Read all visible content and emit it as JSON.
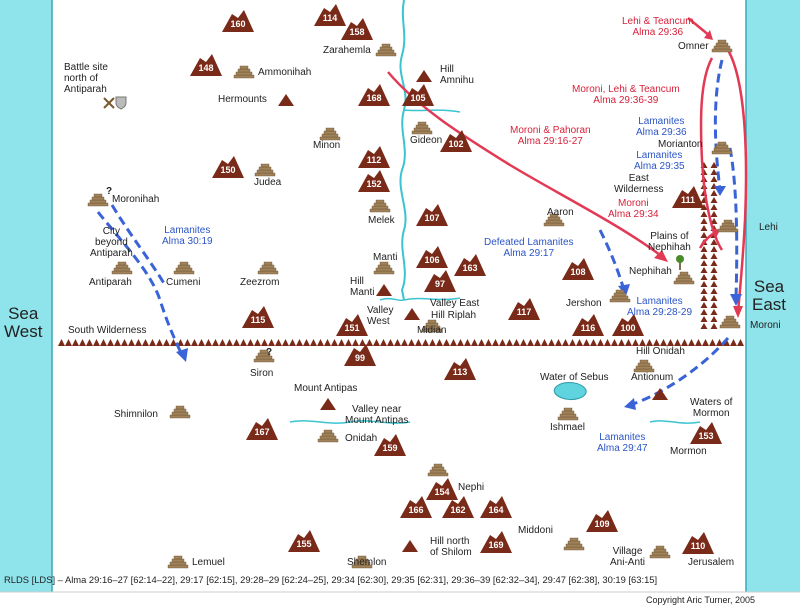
{
  "seas": {
    "west": "Sea\nWest",
    "east": "Sea\nEast"
  },
  "labels": {
    "zarahemla": "Zarahemla",
    "hill_amnihu": "Hill\nAmnihu",
    "ammonihah": "Ammonihah",
    "battle_site": "Battle site\nnorth of\nAntiparah",
    "hermounts": "Hermounts",
    "minon": "Minon",
    "gideon": "Gideon",
    "judea": "Judea",
    "melek": "Melek",
    "moronihah": "Moronihah",
    "city_beyond": "City\nbeyond\nAntiparah",
    "antiparah": "Antiparah",
    "cumeni": "Cumeni",
    "zeezrom": "Zeezrom",
    "manti": "Manti",
    "hill_manti": "Hill\nManti",
    "valley_west": "Valley\nWest",
    "valley_east": "Valley East",
    "hill_riplah": "Hill Riplah",
    "midian": "Midian",
    "south_wilderness": "South Wilderness",
    "siron": "Siron",
    "mount_antipas": "Mount Antipas",
    "valley_near": "Valley near\nMount Antipas",
    "onidah": "Onidah",
    "shimnilon": "Shimnilon",
    "nephi": "Nephi",
    "hill_north_shilom": "Hill north\nof Shilom",
    "middoni": "Middoni",
    "lemuel": "Lemuel",
    "shemlon": "Shemlon",
    "omner": "Omner",
    "morianton": "Morianton",
    "east_wilderness": "East\nWilderness",
    "aaron": "Aaron",
    "plains": "Plains of\nNephihah",
    "nephihah": "Nephihah",
    "jershon": "Jershon",
    "lehi": "Lehi",
    "moroni": "Moroni",
    "hill_onidah": "Hill Onidah",
    "antionum": "Antionum",
    "water_sebus": "Water of Sebus",
    "ishmael": "Ishmael",
    "waters_mormon": "Waters of\nMormon",
    "mormon": "Mormon",
    "village_ani_anti": "Village\nAni-Anti",
    "jerusalem": "Jerusalem",
    "q1": "?",
    "q2": "?"
  },
  "routes": {
    "lehi_teancum": "Lehi & Teancum\nAlma 29:36",
    "moroni_lehi_teancum": "Moroni, Lehi & Teancum\nAlma 29:36-39",
    "moroni_pahoran": "Moroni & Pahoran\nAlma 29:16-27",
    "moroni_3434": "Moroni\nAlma 29:34",
    "lam_3036": "Lamanites\nAlma 29:36",
    "lam_2935": "Lamanites\nAlma 29:35",
    "lam_3019": "Lamanites\nAlma 30:19",
    "defeated": "Defeated Lamanites\nAlma 29:17",
    "lam_2829": "Lamanites\nAlma 29:28-29",
    "lam_2947": "Lamanites\nAlma 29:47"
  },
  "hill_numbers": [
    "160",
    "114",
    "158",
    "148",
    "168",
    "105",
    "102",
    "112",
    "150",
    "152",
    "107",
    "106",
    "163",
    "97",
    "108",
    "115",
    "151",
    "117",
    "116",
    "100",
    "99",
    "113",
    "167",
    "159",
    "154",
    "166",
    "162",
    "164",
    "109",
    "155",
    "169",
    "110",
    "111",
    "153"
  ],
  "footer": {
    "refs": "RLDS [LDS] – Alma 29:16–27 [62:14–22], 29:17 [62:15], 29:28–29 [62:24–25], 29:34 [62:30], 29:35 [62:31], 29:36–39 [62:32–34], 29:47 [62:38], 30:19 [63:15]",
    "copyright": "Copyright Aric Turner, 2005"
  },
  "colors": {
    "sea": "#5fd3de",
    "route_red": "#e23a55",
    "route_blue": "#3a63d8",
    "mountain": "#7a2a18",
    "city": "#a0835a"
  }
}
